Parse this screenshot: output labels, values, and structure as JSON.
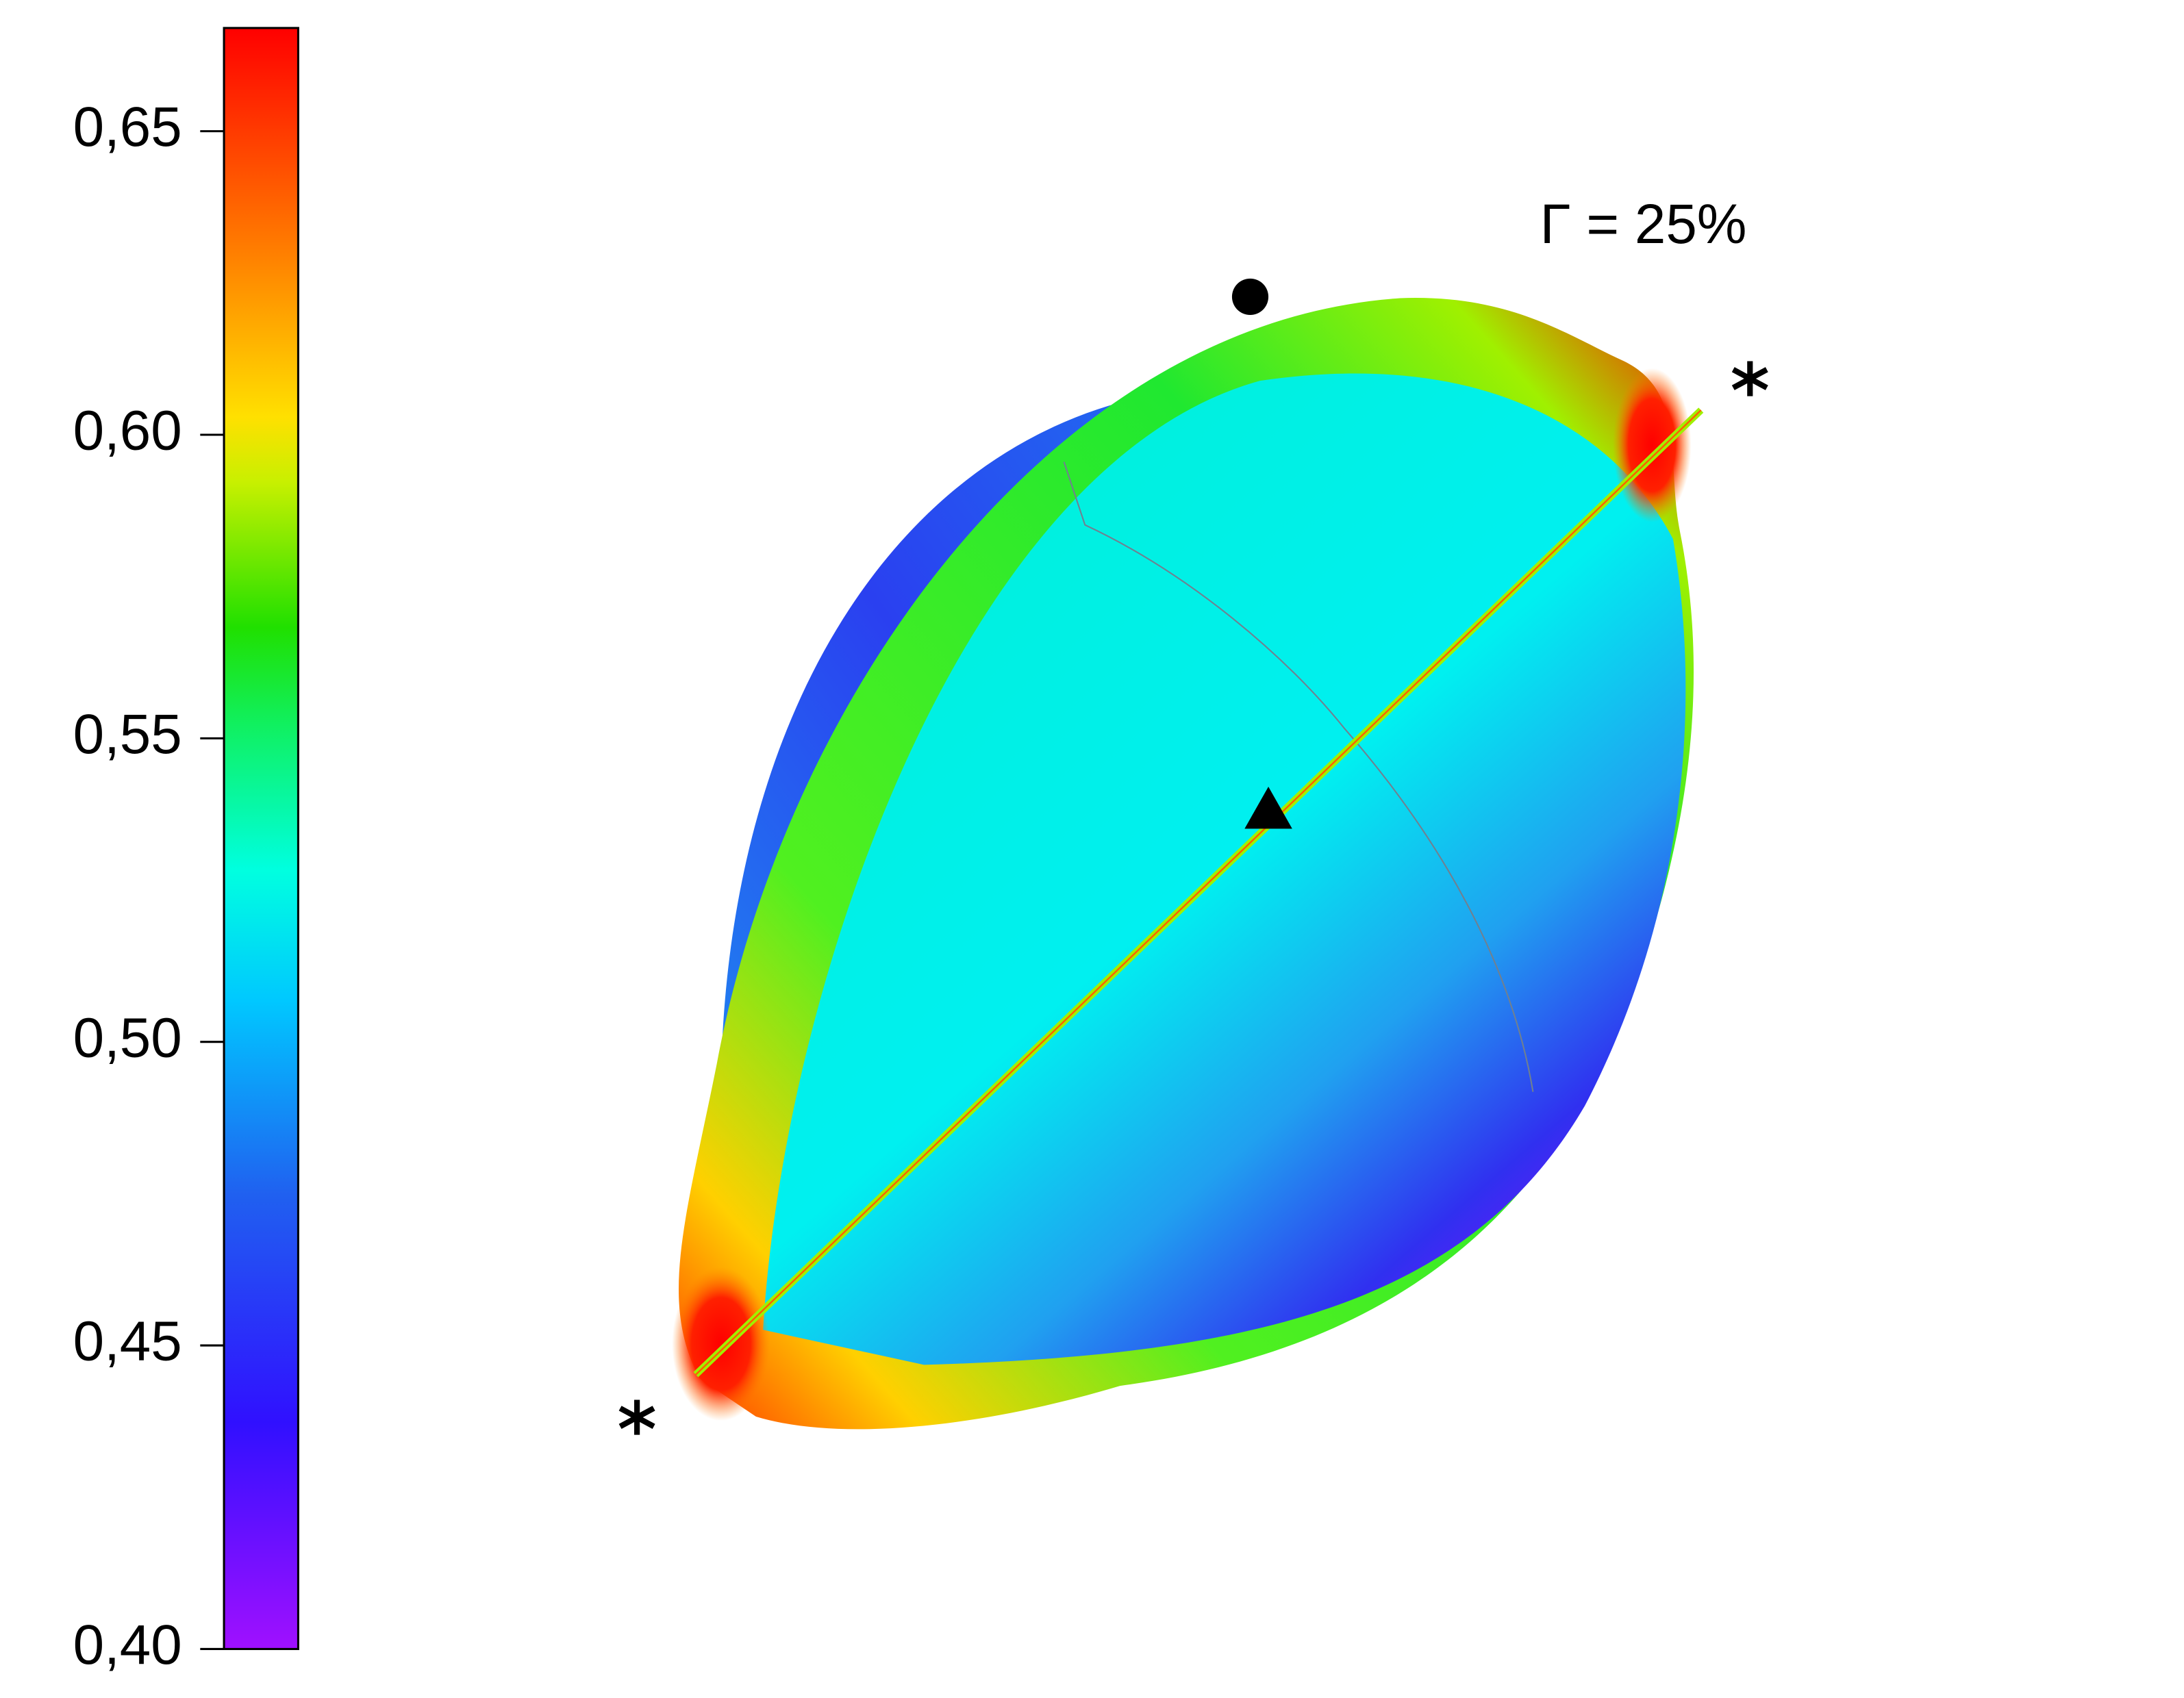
{
  "chart_data": {
    "type": "colorbar",
    "annotation": "Γ = 25%",
    "ylim": [
      0.4,
      0.667
    ],
    "yticks": [
      {
        "value": 0.4,
        "label": "0,40"
      },
      {
        "value": 0.45,
        "label": "0,45"
      },
      {
        "value": 0.5,
        "label": "0,50"
      },
      {
        "value": 0.55,
        "label": "0,55"
      },
      {
        "value": 0.6,
        "label": "0,60"
      },
      {
        "value": 0.65,
        "label": "0,65"
      }
    ]
  }
}
